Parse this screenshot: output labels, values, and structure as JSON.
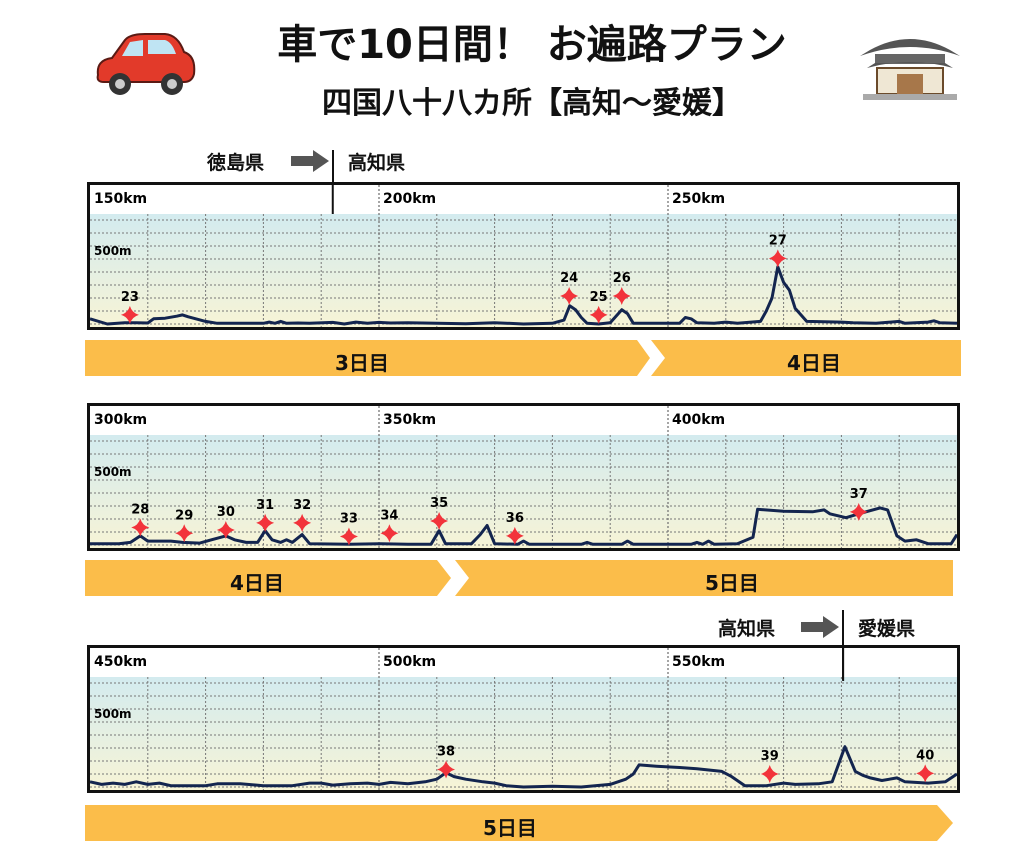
{
  "header": {
    "title": "車で10日間！ お遍路プラン",
    "subtitle": "四国八十八カ所【高知〜愛媛】",
    "left_icon": "car-icon",
    "right_icon": "temple-icon"
  },
  "colors": {
    "line": "#13254f",
    "marker": "#f2333b",
    "daybar": "#fbbd4a",
    "sky_top": "#d3ebef",
    "sky_bottom": "#f7f4d6"
  },
  "boundaries": [
    {
      "from": "徳島県",
      "to": "高知県"
    },
    {
      "from": "高知県",
      "to": "愛媛県"
    }
  ],
  "day_bars": [
    [
      {
        "label": "3日目"
      },
      {
        "label": "4日目"
      }
    ],
    [
      {
        "label": "4日目"
      },
      {
        "label": "5日目"
      }
    ],
    [
      {
        "label": "5日目"
      }
    ]
  ],
  "chart_data": [
    {
      "type": "line",
      "x_unit": "km",
      "xlim": [
        150,
        300
      ],
      "ylim": [
        0,
        800
      ],
      "x_tick_labels": [
        "150km",
        "200km",
        "250km"
      ],
      "y_tick_labels": [
        "500m"
      ],
      "grid": true,
      "boundary_km": 192,
      "profile": [
        [
          150,
          40
        ],
        [
          153,
          0
        ],
        [
          156,
          10
        ],
        [
          158,
          10
        ],
        [
          160,
          8
        ],
        [
          161,
          40
        ],
        [
          163,
          45
        ],
        [
          165,
          60
        ],
        [
          166,
          70
        ],
        [
          167,
          55
        ],
        [
          170,
          20
        ],
        [
          172,
          5
        ],
        [
          180,
          5
        ],
        [
          181,
          15
        ],
        [
          182,
          5
        ],
        [
          183,
          20
        ],
        [
          184,
          5
        ],
        [
          186,
          8
        ],
        [
          188,
          5
        ],
        [
          192,
          12
        ],
        [
          194,
          0
        ],
        [
          196,
          15
        ],
        [
          198,
          5
        ],
        [
          200,
          12
        ],
        [
          202,
          8
        ],
        [
          205,
          10
        ],
        [
          215,
          2
        ],
        [
          220,
          10
        ],
        [
          225,
          0
        ],
        [
          230,
          5
        ],
        [
          232,
          30
        ],
        [
          233,
          140
        ],
        [
          234,
          110
        ],
        [
          235,
          50
        ],
        [
          236,
          5
        ],
        [
          238,
          0
        ],
        [
          240,
          10
        ],
        [
          241,
          60
        ],
        [
          242,
          110
        ],
        [
          243,
          80
        ],
        [
          244,
          5
        ],
        [
          252,
          5
        ],
        [
          253,
          50
        ],
        [
          254,
          40
        ],
        [
          255,
          10
        ],
        [
          258,
          5
        ],
        [
          260,
          15
        ],
        [
          262,
          5
        ],
        [
          266,
          20
        ],
        [
          267,
          100
        ],
        [
          268,
          200
        ],
        [
          269,
          440
        ],
        [
          270,
          320
        ],
        [
          271,
          260
        ],
        [
          272,
          120
        ],
        [
          274,
          20
        ],
        [
          280,
          15
        ],
        [
          282,
          10
        ],
        [
          286,
          5
        ],
        [
          290,
          20
        ],
        [
          291,
          5
        ],
        [
          295,
          15
        ],
        [
          296,
          25
        ],
        [
          297,
          10
        ],
        [
          300,
          5
        ]
      ],
      "temples": [
        {
          "no": "23",
          "km": 156.9,
          "m": 70
        },
        {
          "no": "24",
          "km": 232.9,
          "m": 215
        },
        {
          "no": "25",
          "km": 238,
          "m": 70
        },
        {
          "no": "26",
          "km": 242,
          "m": 215
        },
        {
          "no": "27",
          "km": 269,
          "m": 505
        }
      ]
    },
    {
      "type": "line",
      "x_unit": "km",
      "xlim": [
        300,
        450
      ],
      "ylim": [
        0,
        800
      ],
      "x_tick_labels": [
        "300km",
        "350km",
        "400km"
      ],
      "y_tick_labels": [
        "500m"
      ],
      "grid": true,
      "profile": [
        [
          300,
          10
        ],
        [
          305,
          10
        ],
        [
          307,
          20
        ],
        [
          308.7,
          70
        ],
        [
          310,
          30
        ],
        [
          314,
          30
        ],
        [
          316,
          20
        ],
        [
          319,
          15
        ],
        [
          321,
          40
        ],
        [
          323.5,
          70
        ],
        [
          325,
          40
        ],
        [
          327,
          20
        ],
        [
          329,
          20
        ],
        [
          330.3,
          110
        ],
        [
          331.5,
          40
        ],
        [
          333,
          20
        ],
        [
          334,
          40
        ],
        [
          335,
          20
        ],
        [
          336.7,
          80
        ],
        [
          338,
          10
        ],
        [
          345,
          5
        ],
        [
          350,
          10
        ],
        [
          355,
          5
        ],
        [
          359,
          5
        ],
        [
          360.4,
          110
        ],
        [
          361.5,
          10
        ],
        [
          366,
          10
        ],
        [
          367.5,
          80
        ],
        [
          368.7,
          150
        ],
        [
          370,
          10
        ],
        [
          374,
          5
        ],
        [
          375,
          30
        ],
        [
          376,
          5
        ],
        [
          385,
          5
        ],
        [
          386,
          20
        ],
        [
          387,
          5
        ],
        [
          392,
          5
        ],
        [
          393,
          30
        ],
        [
          394,
          5
        ],
        [
          404,
          5
        ],
        [
          405,
          20
        ],
        [
          406,
          5
        ],
        [
          407,
          30
        ],
        [
          408,
          5
        ],
        [
          412,
          10
        ],
        [
          414.7,
          60
        ],
        [
          415.5,
          275
        ],
        [
          420,
          260
        ],
        [
          425,
          255
        ],
        [
          427,
          270
        ],
        [
          428,
          240
        ],
        [
          430.8,
          210
        ],
        [
          433,
          240
        ],
        [
          436.7,
          285
        ],
        [
          438,
          270
        ],
        [
          439.6,
          70
        ],
        [
          441,
          30
        ],
        [
          443,
          40
        ],
        [
          445,
          10
        ],
        [
          449,
          10
        ],
        [
          450,
          80
        ]
      ],
      "temples": [
        {
          "no": "28",
          "km": 308.7,
          "m": 135
        },
        {
          "no": "29",
          "km": 316.3,
          "m": 90
        },
        {
          "no": "30",
          "km": 323.5,
          "m": 115
        },
        {
          "no": "31",
          "km": 330.3,
          "m": 170
        },
        {
          "no": "32",
          "km": 336.7,
          "m": 170
        },
        {
          "no": "33",
          "km": 344.8,
          "m": 65
        },
        {
          "no": "34",
          "km": 351.8,
          "m": 90
        },
        {
          "no": "35",
          "km": 360.4,
          "m": 185
        },
        {
          "no": "36",
          "km": 373.5,
          "m": 70
        },
        {
          "no": "37",
          "km": 433,
          "m": 255
        }
      ]
    },
    {
      "type": "line",
      "x_unit": "km",
      "xlim": [
        450,
        600
      ],
      "ylim": [
        0,
        800
      ],
      "x_tick_labels": [
        "450km",
        "500km",
        "550km"
      ],
      "y_tick_labels": [
        "500m"
      ],
      "grid": true,
      "boundary_km": 580.3,
      "profile": [
        [
          450,
          40
        ],
        [
          452,
          20
        ],
        [
          454,
          30
        ],
        [
          456,
          20
        ],
        [
          458,
          40
        ],
        [
          460,
          20
        ],
        [
          462,
          30
        ],
        [
          464,
          10
        ],
        [
          470,
          10
        ],
        [
          472,
          25
        ],
        [
          476,
          25
        ],
        [
          480,
          10
        ],
        [
          485,
          10
        ],
        [
          488,
          30
        ],
        [
          490,
          30
        ],
        [
          492,
          15
        ],
        [
          495,
          25
        ],
        [
          498,
          30
        ],
        [
          500,
          20
        ],
        [
          502,
          35
        ],
        [
          505,
          25
        ],
        [
          508,
          40
        ],
        [
          510,
          60
        ],
        [
          511.6,
          110
        ],
        [
          513,
          80
        ],
        [
          515,
          60
        ],
        [
          518,
          40
        ],
        [
          520,
          30
        ],
        [
          522,
          10
        ],
        [
          525,
          0
        ],
        [
          530,
          5
        ],
        [
          535,
          0
        ],
        [
          540,
          20
        ],
        [
          542.7,
          60
        ],
        [
          544,
          100
        ],
        [
          545,
          170
        ],
        [
          548,
          160
        ],
        [
          552,
          150
        ],
        [
          555,
          140
        ],
        [
          559.3,
          120
        ],
        [
          561,
          80
        ],
        [
          563.3,
          10
        ],
        [
          567,
          10
        ],
        [
          570,
          30
        ],
        [
          572,
          20
        ],
        [
          576,
          25
        ],
        [
          578.4,
          40
        ],
        [
          580.6,
          310
        ],
        [
          582.4,
          120
        ],
        [
          583.7,
          90
        ],
        [
          585,
          70
        ],
        [
          587,
          50
        ],
        [
          589.6,
          70
        ],
        [
          591,
          40
        ],
        [
          595,
          30
        ],
        [
          598,
          40
        ],
        [
          600,
          100
        ]
      ],
      "temples": [
        {
          "no": "38",
          "km": 511.6,
          "m": 135
        },
        {
          "no": "39",
          "km": 567.6,
          "m": 100
        },
        {
          "no": "40",
          "km": 594.5,
          "m": 105
        }
      ]
    }
  ]
}
